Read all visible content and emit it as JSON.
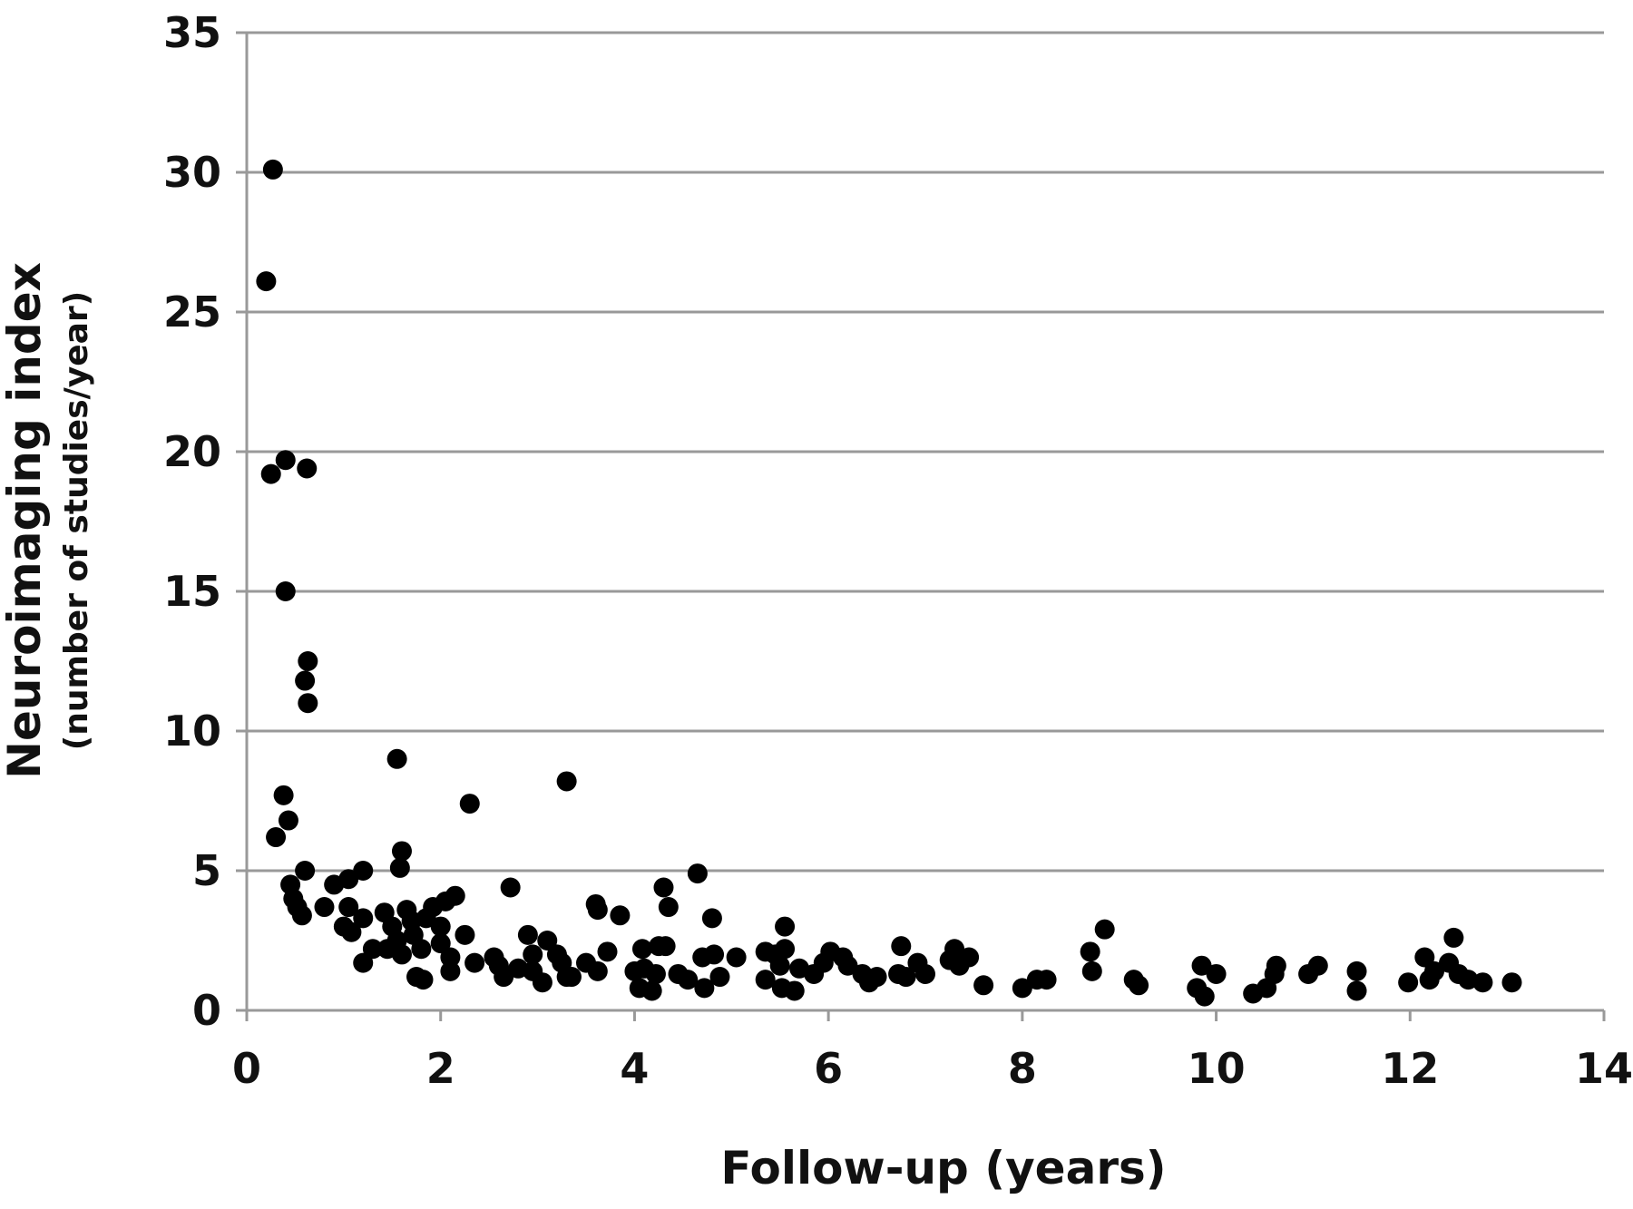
{
  "chart_data": {
    "type": "scatter",
    "xlabel": "Follow-up (years)",
    "ylabel": "Neuroimaging index",
    "ylabel_sub": "(number of studies/year)",
    "xlim": [
      0,
      14
    ],
    "ylim": [
      0,
      35
    ],
    "xticks": [
      0,
      2,
      4,
      6,
      8,
      10,
      12,
      14
    ],
    "yticks": [
      0,
      5,
      10,
      15,
      20,
      25,
      30,
      35
    ],
    "grid": "horizontal",
    "legend": "none",
    "colors": {
      "marker": "#000000",
      "grid": "#999999",
      "axis": "#999999",
      "text": "#111111"
    },
    "points": [
      [
        0.2,
        26.1
      ],
      [
        0.27,
        30.1
      ],
      [
        0.25,
        19.2
      ],
      [
        0.4,
        19.7
      ],
      [
        0.62,
        19.4
      ],
      [
        0.4,
        15.0
      ],
      [
        0.63,
        12.5
      ],
      [
        0.6,
        11.8
      ],
      [
        0.63,
        11.0
      ],
      [
        0.38,
        7.7
      ],
      [
        0.43,
        6.8
      ],
      [
        0.3,
        6.2
      ],
      [
        0.6,
        5.0
      ],
      [
        0.45,
        4.5
      ],
      [
        0.48,
        4.0
      ],
      [
        0.52,
        3.7
      ],
      [
        0.57,
        3.4
      ],
      [
        0.8,
        3.7
      ],
      [
        0.9,
        4.5
      ],
      [
        1.05,
        4.7
      ],
      [
        1.2,
        5.0
      ],
      [
        1.05,
        3.7
      ],
      [
        1.2,
        3.3
      ],
      [
        1.0,
        3.0
      ],
      [
        1.08,
        2.8
      ],
      [
        1.3,
        2.2
      ],
      [
        1.2,
        1.7
      ],
      [
        1.55,
        9.0
      ],
      [
        1.6,
        5.7
      ],
      [
        1.58,
        5.1
      ],
      [
        1.42,
        3.5
      ],
      [
        1.5,
        3.0
      ],
      [
        1.55,
        2.5
      ],
      [
        1.45,
        2.2
      ],
      [
        1.65,
        3.6
      ],
      [
        1.7,
        3.2
      ],
      [
        1.72,
        2.7
      ],
      [
        1.6,
        2.0
      ],
      [
        1.8,
        2.2
      ],
      [
        1.75,
        1.2
      ],
      [
        1.82,
        1.1
      ],
      [
        1.85,
        3.3
      ],
      [
        1.92,
        3.7
      ],
      [
        2.0,
        3.0
      ],
      [
        2.05,
        3.9
      ],
      [
        2.15,
        4.1
      ],
      [
        2.0,
        2.4
      ],
      [
        2.1,
        1.9
      ],
      [
        2.1,
        1.4
      ],
      [
        2.3,
        7.4
      ],
      [
        2.25,
        2.7
      ],
      [
        2.35,
        1.7
      ],
      [
        2.55,
        1.9
      ],
      [
        2.6,
        1.6
      ],
      [
        2.65,
        1.2
      ],
      [
        2.72,
        4.4
      ],
      [
        2.8,
        1.5
      ],
      [
        2.9,
        2.7
      ],
      [
        2.95,
        2.0
      ],
      [
        2.95,
        1.4
      ],
      [
        3.05,
        1.0
      ],
      [
        3.1,
        2.5
      ],
      [
        3.2,
        2.0
      ],
      [
        3.25,
        1.7
      ],
      [
        3.3,
        8.2
      ],
      [
        3.3,
        1.2
      ],
      [
        3.35,
        1.2
      ],
      [
        3.5,
        1.7
      ],
      [
        3.6,
        3.8
      ],
      [
        3.62,
        3.6
      ],
      [
        3.62,
        1.4
      ],
      [
        3.72,
        2.1
      ],
      [
        3.85,
        3.4
      ],
      [
        4.0,
        1.4
      ],
      [
        4.05,
        0.8
      ],
      [
        4.08,
        2.2
      ],
      [
        4.1,
        1.5
      ],
      [
        4.18,
        0.7
      ],
      [
        4.22,
        1.3
      ],
      [
        4.25,
        2.3
      ],
      [
        4.3,
        4.4
      ],
      [
        4.32,
        2.3
      ],
      [
        4.35,
        3.7
      ],
      [
        4.45,
        1.3
      ],
      [
        4.55,
        1.1
      ],
      [
        4.65,
        4.9
      ],
      [
        4.7,
        1.9
      ],
      [
        4.72,
        0.8
      ],
      [
        4.8,
        3.3
      ],
      [
        4.82,
        2.0
      ],
      [
        4.88,
        1.2
      ],
      [
        5.05,
        1.9
      ],
      [
        5.35,
        1.1
      ],
      [
        5.35,
        2.1
      ],
      [
        5.45,
        2.0
      ],
      [
        5.5,
        1.6
      ],
      [
        5.55,
        2.2
      ],
      [
        5.55,
        3.0
      ],
      [
        5.52,
        0.8
      ],
      [
        5.65,
        0.7
      ],
      [
        5.7,
        1.5
      ],
      [
        5.85,
        1.3
      ],
      [
        5.95,
        1.7
      ],
      [
        6.02,
        2.1
      ],
      [
        6.15,
        1.9
      ],
      [
        6.2,
        1.6
      ],
      [
        6.35,
        1.3
      ],
      [
        6.42,
        1.0
      ],
      [
        6.5,
        1.2
      ],
      [
        6.72,
        1.3
      ],
      [
        6.75,
        2.3
      ],
      [
        6.8,
        1.2
      ],
      [
        6.92,
        1.7
      ],
      [
        7.0,
        1.3
      ],
      [
        7.25,
        1.8
      ],
      [
        7.3,
        2.2
      ],
      [
        7.35,
        1.6
      ],
      [
        7.45,
        1.9
      ],
      [
        7.6,
        0.9
      ],
      [
        8.0,
        0.8
      ],
      [
        8.15,
        1.1
      ],
      [
        8.25,
        1.1
      ],
      [
        8.7,
        2.1
      ],
      [
        8.72,
        1.4
      ],
      [
        8.85,
        2.9
      ],
      [
        9.15,
        1.1
      ],
      [
        9.2,
        0.9
      ],
      [
        9.8,
        0.8
      ],
      [
        9.85,
        1.6
      ],
      [
        9.88,
        0.5
      ],
      [
        10.0,
        1.3
      ],
      [
        10.38,
        0.6
      ],
      [
        10.52,
        0.8
      ],
      [
        10.62,
        1.6
      ],
      [
        10.6,
        1.3
      ],
      [
        10.95,
        1.3
      ],
      [
        11.05,
        1.6
      ],
      [
        11.45,
        1.4
      ],
      [
        11.45,
        0.7
      ],
      [
        11.98,
        1.0
      ],
      [
        12.15,
        1.9
      ],
      [
        12.2,
        1.1
      ],
      [
        12.25,
        1.4
      ],
      [
        12.4,
        1.7
      ],
      [
        12.45,
        2.6
      ],
      [
        12.5,
        1.3
      ],
      [
        12.6,
        1.1
      ],
      [
        12.75,
        1.0
      ],
      [
        13.05,
        1.0
      ]
    ]
  }
}
